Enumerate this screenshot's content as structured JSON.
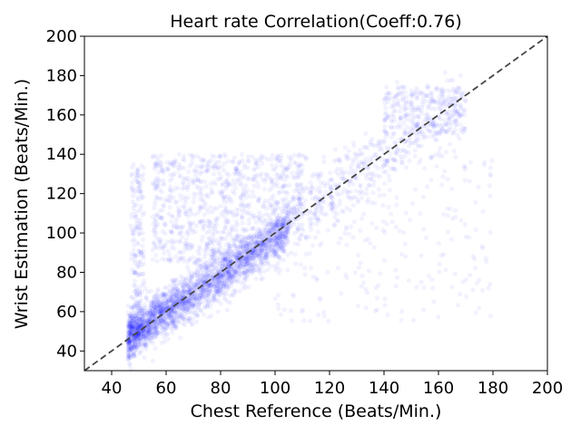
{
  "chart_data": {
    "type": "scatter",
    "title": "Heart rate Correlation(Coeff:0.76)",
    "xlabel": "Chest Reference (Beats/Min.)",
    "ylabel": "Wrist Estimation (Beats/Min.)",
    "xlim": [
      30,
      200
    ],
    "ylim": [
      30,
      200
    ],
    "xticks": [
      40,
      60,
      80,
      100,
      120,
      140,
      160,
      180,
      200
    ],
    "yticks": [
      40,
      60,
      80,
      100,
      120,
      140,
      160,
      180,
      200
    ],
    "coefficient": 0.76,
    "point_color": "#0000ff",
    "point_alpha": 0.05,
    "reference_line": {
      "x": [
        30,
        200
      ],
      "y": [
        30,
        200
      ],
      "color": "#444444",
      "style": "dashed"
    },
    "clusters": [
      {
        "name": "main-diagonal",
        "x_range": [
          46,
          105
        ],
        "slope": 0.93,
        "intercept": 4,
        "spread": 6,
        "count": 2600
      },
      {
        "name": "upper-spread",
        "x_range": [
          55,
          110
        ],
        "y_range": [
          85,
          140
        ],
        "count": 900
      },
      {
        "name": "upper-diagonal",
        "x_range": [
          100,
          170
        ],
        "slope": 0.95,
        "intercept": 5,
        "spread": 9,
        "count": 500
      },
      {
        "name": "upper-right-band",
        "x_range": [
          140,
          170
        ],
        "y_range": [
          150,
          175
        ],
        "count": 250
      },
      {
        "name": "left-vertical",
        "x_range": [
          47,
          52
        ],
        "y_range": [
          45,
          135
        ],
        "count": 200
      },
      {
        "name": "scattered-right",
        "x_range": [
          100,
          180
        ],
        "y_range": [
          55,
          140
        ],
        "count": 250
      }
    ]
  }
}
